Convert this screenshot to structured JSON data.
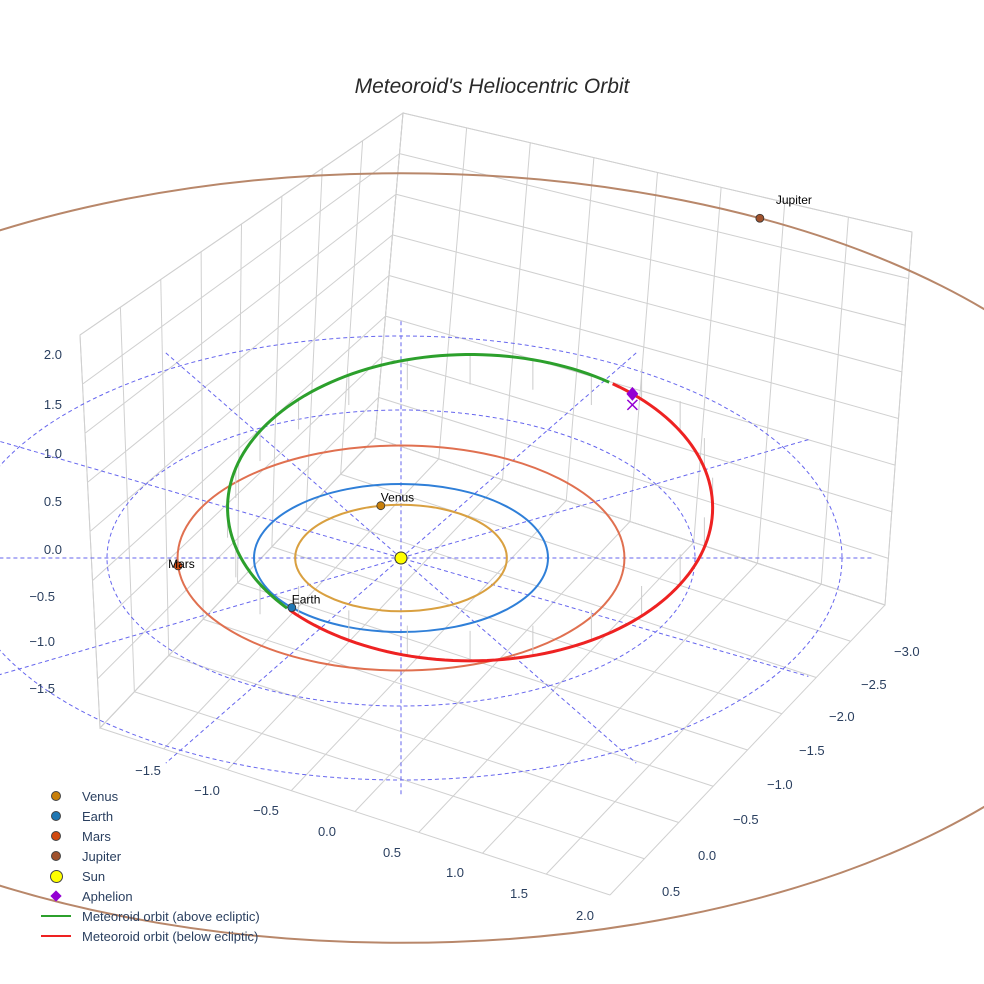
{
  "chart_data": {
    "type": "scatter3d",
    "title": "Meteoroid's Heliocentric Orbit",
    "axes": {
      "x_ticks": [
        "−1.5",
        "−1.0",
        "−0.5",
        "0.0",
        "0.5",
        "1.0",
        "1.5",
        "2.0"
      ],
      "y_ticks": [
        "−3.0",
        "−2.5",
        "−2.0",
        "−1.5",
        "−1.0",
        "−0.5",
        "0.0",
        "0.5"
      ],
      "z_ticks": [
        "2.0",
        "1.5",
        "1.0",
        "0.5",
        "0.0",
        "−0.5",
        "−1.0",
        "−1.5"
      ]
    },
    "planets": [
      {
        "name": "Venus",
        "orbit_radius_au": 0.72,
        "angle_deg": 101,
        "color": "#c87f0a",
        "orbit_color": "#d9a040"
      },
      {
        "name": "Earth",
        "orbit_radius_au": 1.0,
        "angle_deg": 222,
        "color": "#1f77b4",
        "orbit_color": "#2f7fd8"
      },
      {
        "name": "Mars",
        "orbit_radius_au": 1.52,
        "angle_deg": 184,
        "color": "#d1490f",
        "orbit_color": "#e07050"
      },
      {
        "name": "Jupiter",
        "orbit_radius_au": 5.2,
        "angle_deg": 62,
        "color": "#a0522d",
        "orbit_color": "#b8876a"
      }
    ],
    "sun": {
      "name": "Sun",
      "color": "#ffff00"
    },
    "meteoroid_orbit": {
      "center_au": [
        0.47,
        0.68
      ],
      "semi_axes_au": [
        1.65,
        2.07
      ],
      "above_ecliptic_range_deg": [
        55,
        222
      ],
      "above_color": "#2ca02c",
      "below_color": "#ee2222"
    },
    "aphelion": {
      "name": "Aphelion",
      "param_deg": 48,
      "color": "#9400d3"
    },
    "ecliptic_grid": {
      "circle_radii_au": [
        2,
        3
      ],
      "radial_step_deg": 30,
      "color": "#6666ee"
    },
    "legend": [
      {
        "label": "Venus",
        "symbol": "dot",
        "color": "#c87f0a"
      },
      {
        "label": "Earth",
        "symbol": "dot",
        "color": "#1f77b4"
      },
      {
        "label": "Mars",
        "symbol": "dot",
        "color": "#d1490f"
      },
      {
        "label": "Jupiter",
        "symbol": "dot",
        "color": "#a0522d"
      },
      {
        "label": "Sun",
        "symbol": "sun",
        "color": "#ffff00"
      },
      {
        "label": "Aphelion",
        "symbol": "diamond",
        "color": "#9400d3"
      },
      {
        "label": "Meteoroid orbit (above ecliptic)",
        "symbol": "line",
        "color": "#2ca02c"
      },
      {
        "label": "Meteoroid orbit (below ecliptic)",
        "symbol": "line",
        "color": "#ee2222"
      }
    ]
  }
}
